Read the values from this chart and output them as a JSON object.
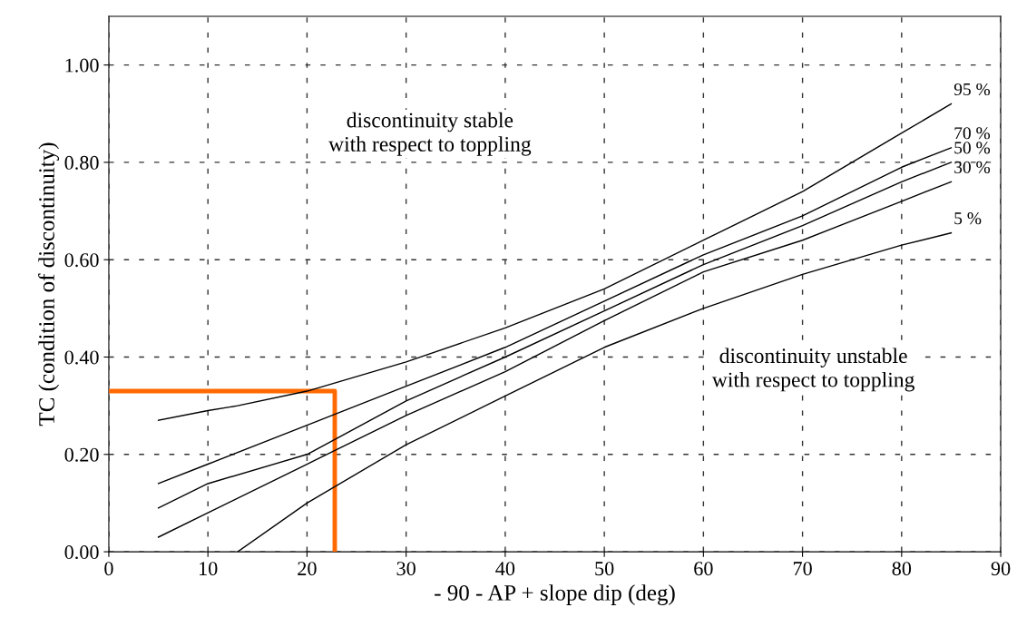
{
  "chart_data": {
    "type": "line",
    "xlabel": "- 90 - AP + slope dip (deg)",
    "ylabel": "TC (condition of discontinuity)",
    "xlim": [
      0,
      90
    ],
    "xticks": [
      0,
      10,
      20,
      30,
      40,
      50,
      60,
      70,
      80,
      90
    ],
    "ylim": [
      0,
      1.1
    ],
    "yticks": [
      {
        "value": 0,
        "label": "0.00"
      },
      {
        "value": 0.2,
        "label": "0.20"
      },
      {
        "value": 0.4,
        "label": "0.40"
      },
      {
        "value": 0.6,
        "label": "0.60"
      },
      {
        "value": 0.8,
        "label": "0.80"
      },
      {
        "value": 1.0,
        "label": "1.00"
      }
    ],
    "grid": true,
    "line_style": "solid",
    "series": [
      {
        "name": "95 %",
        "color": "#000000",
        "x": [
          5,
          10,
          13,
          20,
          30,
          40,
          50,
          60,
          70,
          80,
          85
        ],
        "values": [
          0.27,
          0.29,
          0.3,
          0.33,
          0.39,
          0.46,
          0.54,
          0.64,
          0.74,
          0.86,
          0.92
        ]
      },
      {
        "name": "70 %",
        "color": "#000000",
        "x": [
          5,
          10,
          20,
          30,
          40,
          50,
          60,
          70,
          80,
          85
        ],
        "values": [
          0.14,
          0.18,
          0.26,
          0.34,
          0.42,
          0.515,
          0.61,
          0.69,
          0.79,
          0.83
        ]
      },
      {
        "name": "50 %",
        "color": "#000000",
        "x": [
          5,
          10,
          20,
          30,
          40,
          50,
          60,
          70,
          80,
          85
        ],
        "values": [
          0.09,
          0.14,
          0.2,
          0.31,
          0.4,
          0.495,
          0.59,
          0.67,
          0.76,
          0.8
        ]
      },
      {
        "name": "30 %",
        "color": "#000000",
        "x": [
          5,
          10,
          20,
          30,
          40,
          50,
          60,
          70,
          80,
          85
        ],
        "values": [
          0.03,
          0.08,
          0.18,
          0.28,
          0.37,
          0.475,
          0.575,
          0.64,
          0.72,
          0.76
        ]
      },
      {
        "name": "5 %",
        "color": "#000000",
        "x": [
          13,
          20,
          30,
          40,
          50,
          60,
          70,
          80,
          85
        ],
        "values": [
          0.0,
          0.1,
          0.22,
          0.32,
          0.42,
          0.5,
          0.57,
          0.63,
          0.655
        ]
      },
      {
        "color": "#ff6a00",
        "x": [
          0,
          22.8,
          22.8
        ],
        "values": [
          0.33,
          0.33,
          0.0
        ]
      }
    ],
    "annotations": [
      "discontinuity stable\nwith respect to toppling",
      "discontinuity unstable\nwith respect to toppling"
    ]
  }
}
